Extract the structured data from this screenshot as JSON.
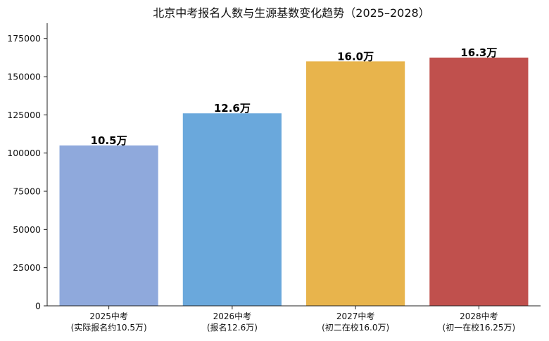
{
  "chart_data": {
    "type": "bar",
    "title": "北京中考报名人数与生源基数变化趋势（2025–2028）",
    "xlabel": "",
    "ylabel": "",
    "ylim": [
      0,
      185000
    ],
    "yticks": [
      0,
      25000,
      50000,
      75000,
      100000,
      125000,
      150000,
      175000
    ],
    "grid": false,
    "legend": "none",
    "categories": [
      [
        "2025中考",
        "(实际报名约10.5万)"
      ],
      [
        "2026中考",
        "(报名12.6万)"
      ],
      [
        "2027中考",
        "(初二在校16.0万)"
      ],
      [
        "2028中考",
        "(初一在校16.25万)"
      ]
    ],
    "values": [
      105000,
      126000,
      160000,
      162500
    ],
    "data_labels": [
      "10.5万",
      "12.6万",
      "16.0万",
      "16.3万"
    ],
    "colors": [
      "#8fa9dc",
      "#6aa8dc",
      "#e8b44c",
      "#c0504d"
    ]
  }
}
